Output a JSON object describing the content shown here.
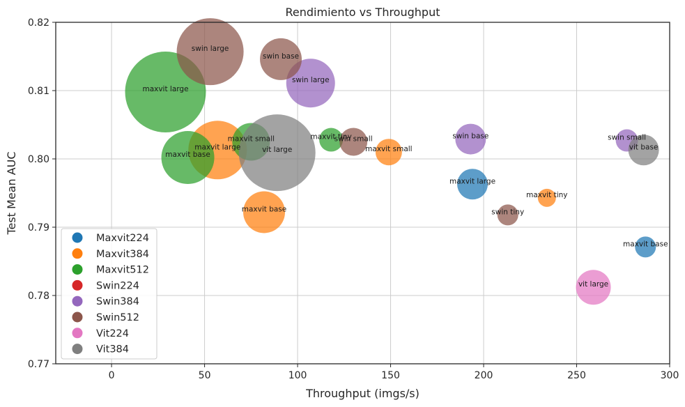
{
  "chart_data": {
    "type": "scatter",
    "title": "Rendimiento vs Throughput",
    "xlabel": "Throughput (imgs/s)",
    "ylabel": "Test Mean AUC",
    "xlim": [
      -30,
      300
    ],
    "ylim": [
      0.77,
      0.82
    ],
    "x_ticks": [
      0,
      50,
      100,
      150,
      200,
      250,
      300
    ],
    "y_ticks": [
      0.77,
      0.78,
      0.79,
      0.8,
      0.81,
      0.82
    ],
    "x_tick_labels": [
      "0",
      "50",
      "100",
      "150",
      "200",
      "250",
      "300"
    ],
    "y_tick_labels": [
      "0.77",
      "0.78",
      "0.79",
      "0.80",
      "0.81",
      "0.82"
    ],
    "grid": true,
    "legend_position": "bottom-left",
    "series": [
      {
        "name": "Maxvit224",
        "color": "#1f77b4",
        "points": [
          {
            "label": "maxvit large",
            "x": 194,
            "y": 0.7963,
            "size": 22
          },
          {
            "label": "maxvit base",
            "x": 287,
            "y": 0.7871,
            "size": 15
          }
        ]
      },
      {
        "name": "Maxvit384",
        "color": "#ff7f0e",
        "points": [
          {
            "label": "maxvit large",
            "x": 57,
            "y": 0.8013,
            "size": 42
          },
          {
            "label": "maxvit base",
            "x": 82,
            "y": 0.7922,
            "size": 30
          },
          {
            "label": "maxvit small",
            "x": 149,
            "y": 0.801,
            "size": 19
          },
          {
            "label": "maxvit tiny",
            "x": 234,
            "y": 0.7943,
            "size": 13
          }
        ]
      },
      {
        "name": "Maxvit512",
        "color": "#2ca02c",
        "points": [
          {
            "label": "maxvit large",
            "x": 29,
            "y": 0.8098,
            "size": 58
          },
          {
            "label": "maxvit base",
            "x": 41,
            "y": 0.8002,
            "size": 38
          },
          {
            "label": "maxvit small",
            "x": 75,
            "y": 0.8025,
            "size": 27
          },
          {
            "label": "maxvit tiny",
            "x": 118,
            "y": 0.8028,
            "size": 17
          }
        ]
      },
      {
        "name": "Swin224",
        "color": "#d62728",
        "points": []
      },
      {
        "name": "Swin384",
        "color": "#9467bd",
        "points": [
          {
            "label": "swin large",
            "x": 107,
            "y": 0.8111,
            "size": 35
          },
          {
            "label": "swin base",
            "x": 193,
            "y": 0.8029,
            "size": 22
          },
          {
            "label": "swin small",
            "x": 277,
            "y": 0.8027,
            "size": 16
          }
        ]
      },
      {
        "name": "Swin512",
        "color": "#8c564b",
        "points": [
          {
            "label": "swin large",
            "x": 53,
            "y": 0.8157,
            "size": 48
          },
          {
            "label": "swin base",
            "x": 91,
            "y": 0.8146,
            "size": 30
          },
          {
            "label": "swin small",
            "x": 130,
            "y": 0.8025,
            "size": 20
          },
          {
            "label": "swin tiny",
            "x": 213,
            "y": 0.7918,
            "size": 15
          }
        ]
      },
      {
        "name": "Vit224",
        "color": "#e377c2",
        "points": [
          {
            "label": "vit large",
            "x": 259,
            "y": 0.7812,
            "size": 25
          }
        ]
      },
      {
        "name": "Vit384",
        "color": "#7f7f7f",
        "points": [
          {
            "label": "vit large",
            "x": 89,
            "y": 0.8009,
            "size": 55
          },
          {
            "label": "vit base",
            "x": 286,
            "y": 0.8013,
            "size": 22
          }
        ]
      }
    ]
  }
}
